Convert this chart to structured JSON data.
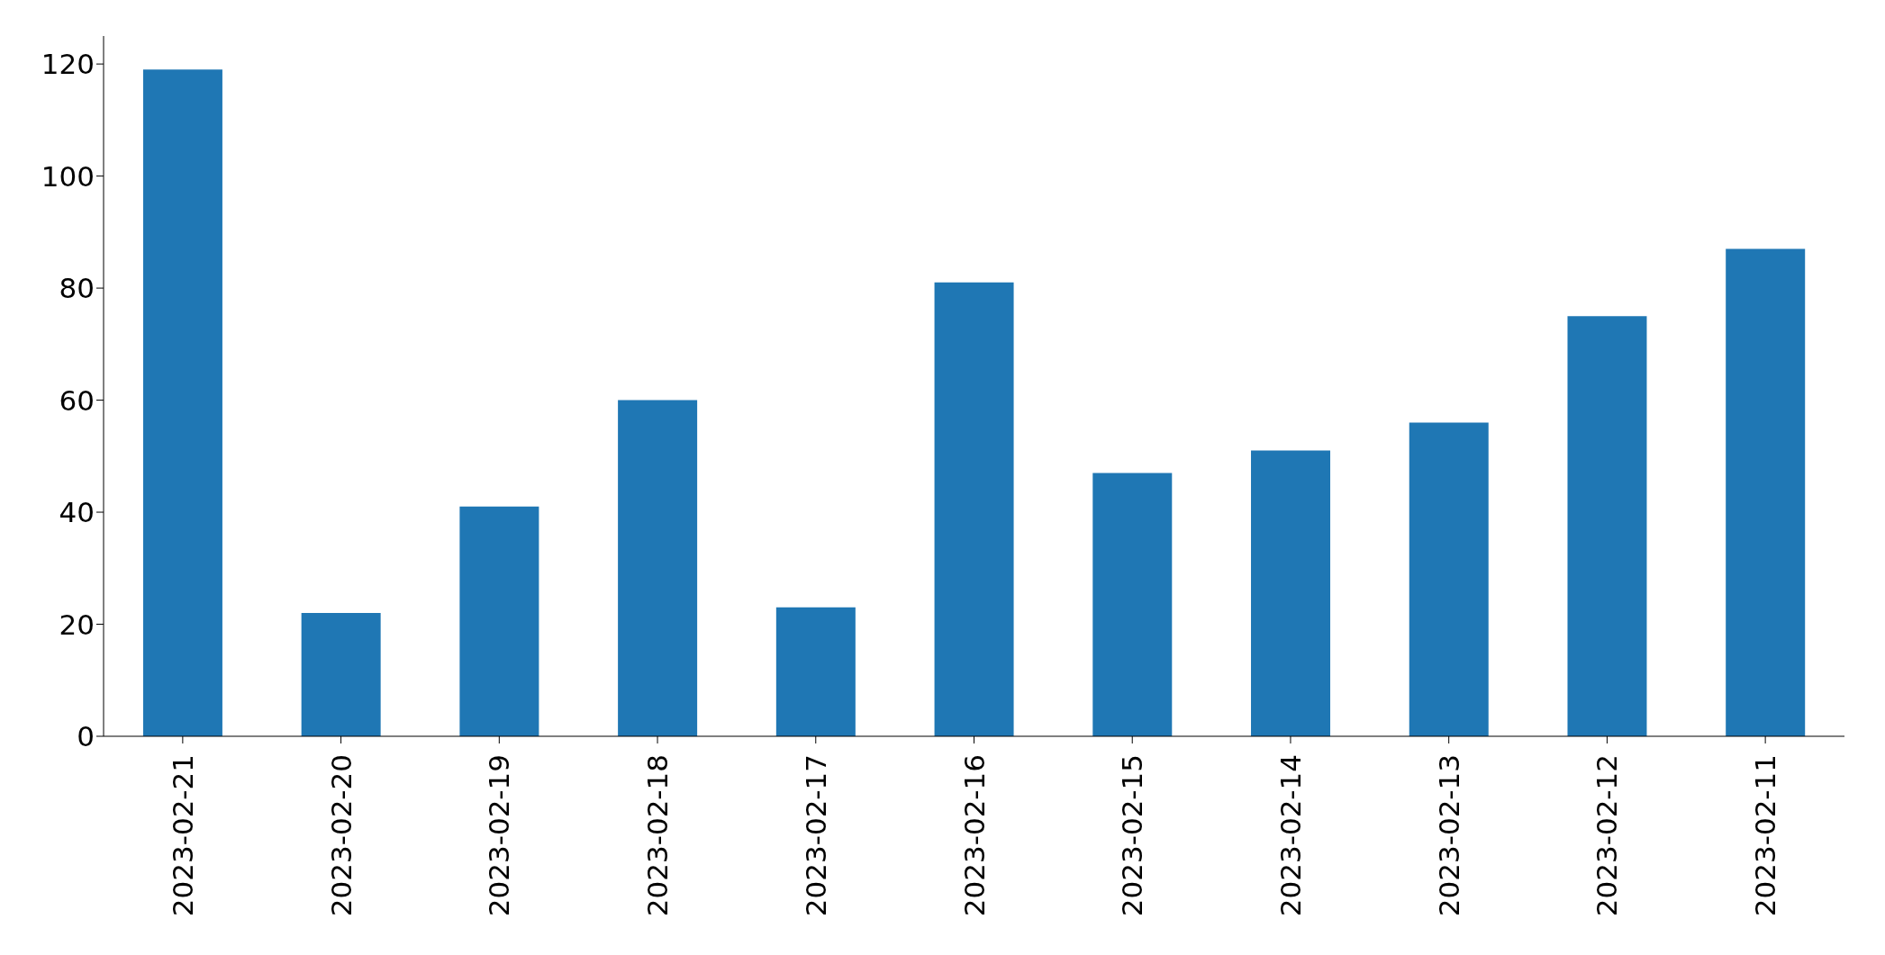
{
  "chart_data": {
    "type": "bar",
    "categories": [
      "2023-02-21",
      "2023-02-20",
      "2023-02-19",
      "2023-02-18",
      "2023-02-17",
      "2023-02-16",
      "2023-02-15",
      "2023-02-14",
      "2023-02-13",
      "2023-02-12",
      "2023-02-11"
    ],
    "values": [
      119,
      22,
      41,
      60,
      23,
      81,
      47,
      51,
      56,
      75,
      87
    ],
    "color": "#1f77b4",
    "ylim": [
      0,
      125
    ],
    "yticks": [
      0,
      20,
      40,
      60,
      80,
      100,
      120
    ],
    "grid": false,
    "legend": false
  }
}
